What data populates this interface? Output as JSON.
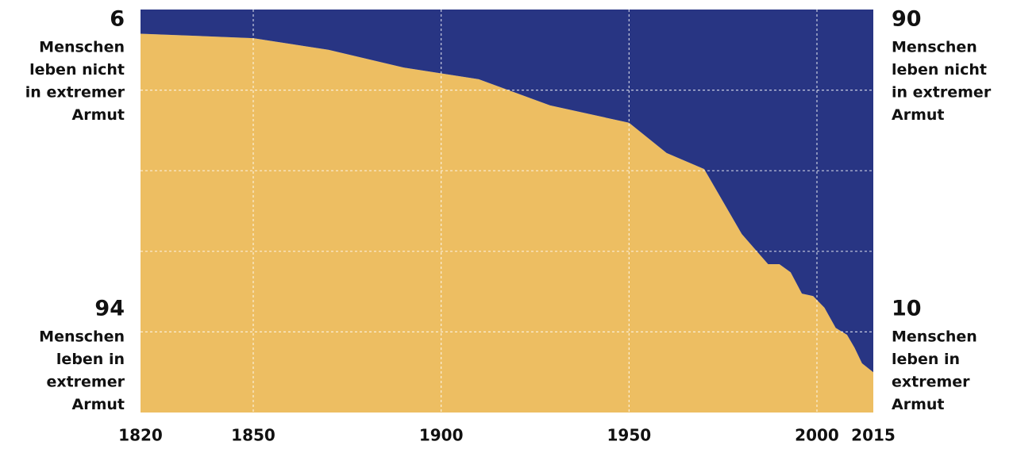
{
  "chart_data": {
    "type": "stacked_area",
    "x": [
      1820,
      1850,
      1870,
      1890,
      1910,
      1929,
      1950,
      1960,
      1970,
      1980,
      1987,
      1990,
      1993,
      1996,
      1999,
      2002,
      2005,
      2008,
      2010,
      2012,
      2015
    ],
    "series": [
      {
        "color": "#edbe62",
        "label_lines": [
          "Menschen",
          "leben in",
          "extremer",
          "Armut"
        ],
        "values": [
          94,
          92.9,
          90,
          85.6,
          82.7,
          76.2,
          71.9,
          64.4,
          60.4,
          44.3,
          36.8,
          36.8,
          34.8,
          29.5,
          28.9,
          26,
          21,
          19.3,
          16.1,
          12.2,
          10
        ]
      },
      {
        "color": "#283583",
        "label_lines": [
          "Menschen",
          "leben nicht",
          "in extremer",
          "Armut"
        ],
        "values": [
          6,
          7.1,
          10,
          14.4,
          17.3,
          23.8,
          28.1,
          35.6,
          39.6,
          55.7,
          63.2,
          63.2,
          65.2,
          70.5,
          71.1,
          74,
          79,
          80.7,
          83.9,
          87.8,
          90
        ]
      }
    ],
    "xlim": [
      1820,
      2015
    ],
    "xticks": [
      1820,
      1850,
      1900,
      1950,
      2000,
      2015
    ],
    "ylim": [
      0,
      100
    ],
    "yticks": [
      20,
      40,
      60,
      80
    ],
    "grid": true
  }
}
